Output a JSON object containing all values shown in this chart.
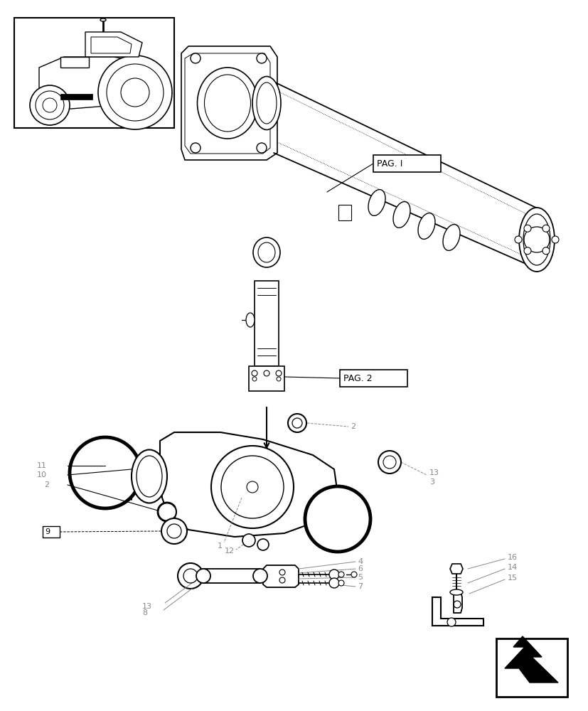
{
  "bg_color": "#ffffff",
  "line_color": "#000000",
  "gray_color": "#888888",
  "light_color": "#bbbbbb",
  "page_width": 8.28,
  "page_height": 10.0,
  "pag1": "PAG. I",
  "pag2": "PAG. 2"
}
